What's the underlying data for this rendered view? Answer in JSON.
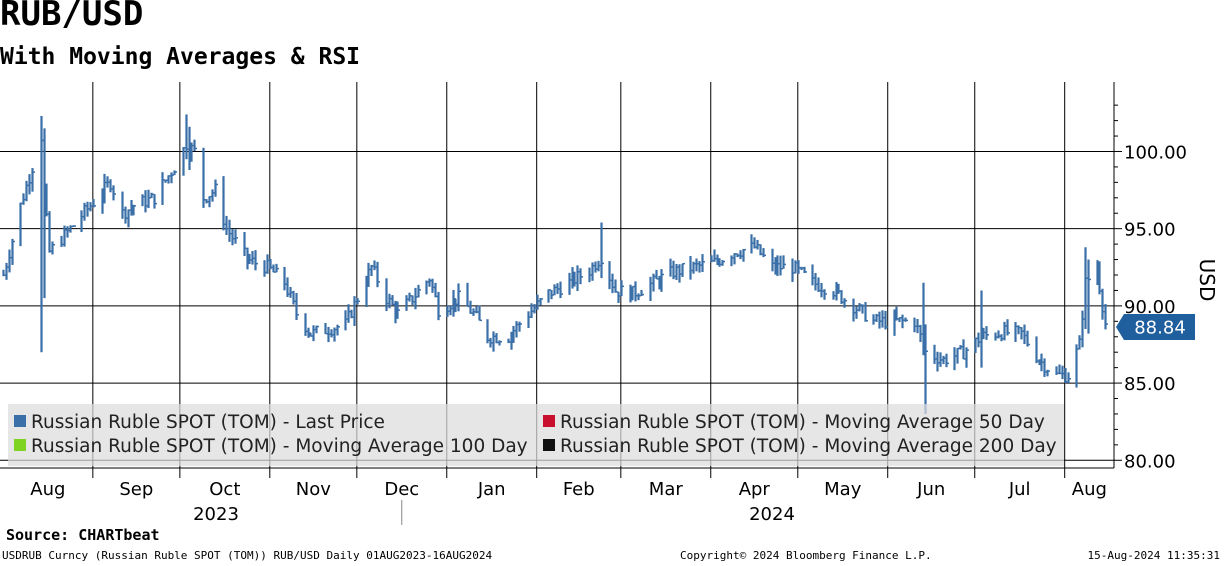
{
  "header": {
    "title": "RUB/USD",
    "subtitle": "With Moving Averages & RSI"
  },
  "footer": {
    "source": "Source: CHARTbeat",
    "security": "USDRUB Curncy (Russian Ruble SPOT (TOM)) RUB/USD  Daily 01AUG2023-16AUG2024",
    "copyright": "Copyright© 2024 Bloomberg Finance L.P.",
    "timestamp": "15-Aug-2024 11:35:31"
  },
  "legend": {
    "items": [
      {
        "label": "Russian Ruble SPOT (TOM) - Last Price",
        "color": "#3a6fa8"
      },
      {
        "label": "Russian Ruble SPOT (TOM) - Moving Average 50 Day",
        "color": "#c8102e"
      },
      {
        "label": "Russian Ruble SPOT (TOM) - Moving Average 100 Day",
        "color": "#7ed321"
      },
      {
        "label": "Russian Ruble SPOT (TOM) - Moving Average 200 Day",
        "color": "#111111"
      }
    ]
  },
  "last_price": {
    "label": "88.84",
    "color": "#1f5f9e"
  },
  "chart_data": {
    "type": "bar",
    "style": "ohlc",
    "title": "RUB/USD",
    "subtitle": "With Moving Averages & RSI",
    "ylabel": "USD",
    "ylim": [
      79.5,
      104.5
    ],
    "yticks": [
      80,
      85,
      90,
      95,
      100
    ],
    "ytick_labels": [
      "80.00",
      "85.00",
      "90.00",
      "95.00",
      "100.00"
    ],
    "grid": true,
    "months": [
      "Aug",
      "Sep",
      "Oct",
      "Nov",
      "Dec",
      "Jan",
      "Feb",
      "Mar",
      "Apr",
      "May",
      "Jun",
      "Jul",
      "Aug"
    ],
    "years": [
      "2023",
      "2024"
    ],
    "last_value": 88.84,
    "series": [
      {
        "name": "Russian Ruble SPOT (TOM) - Last Price",
        "color": "#3a6fa8",
        "anchors": [
          [
            "2023-08-01",
            92.0
          ],
          [
            "2023-08-07",
            96.5
          ],
          [
            "2023-08-11",
            99.0
          ],
          [
            "2023-08-14",
            101.0
          ],
          [
            "2023-08-15",
            97.5
          ],
          [
            "2023-08-17",
            93.5
          ],
          [
            "2023-08-24",
            95.0
          ],
          [
            "2023-08-31",
            96.5
          ],
          [
            "2023-09-07",
            98.0
          ],
          [
            "2023-09-11",
            96.0
          ],
          [
            "2023-09-15",
            96.5
          ],
          [
            "2023-09-22",
            97.0
          ],
          [
            "2023-09-29",
            99.0
          ],
          [
            "2023-10-03",
            100.5
          ],
          [
            "2023-10-06",
            100.0
          ],
          [
            "2023-10-09",
            97.0
          ],
          [
            "2023-10-13",
            97.5
          ],
          [
            "2023-10-17",
            95.0
          ],
          [
            "2023-10-24",
            93.0
          ],
          [
            "2023-10-31",
            92.5
          ],
          [
            "2023-11-06",
            91.5
          ],
          [
            "2023-11-10",
            89.5
          ],
          [
            "2023-11-15",
            88.2
          ],
          [
            "2023-11-21",
            88.5
          ],
          [
            "2023-11-27",
            88.8
          ],
          [
            "2023-12-01",
            90.5
          ],
          [
            "2023-12-06",
            92.5
          ],
          [
            "2023-12-11",
            90.5
          ],
          [
            "2023-12-15",
            89.5
          ],
          [
            "2023-12-20",
            90.5
          ],
          [
            "2023-12-26",
            91.8
          ],
          [
            "2023-12-29",
            89.8
          ],
          [
            "2024-01-05",
            90.5
          ],
          [
            "2024-01-10",
            89.5
          ],
          [
            "2024-01-15",
            88.0
          ],
          [
            "2024-01-22",
            88.0
          ],
          [
            "2024-01-29",
            89.5
          ],
          [
            "2024-02-05",
            90.8
          ],
          [
            "2024-02-12",
            91.5
          ],
          [
            "2024-02-19",
            92.3
          ],
          [
            "2024-02-23",
            93.2
          ],
          [
            "2024-02-28",
            91.0
          ],
          [
            "2024-03-05",
            90.8
          ],
          [
            "2024-03-12",
            91.5
          ],
          [
            "2024-03-19",
            92.2
          ],
          [
            "2024-03-26",
            92.5
          ],
          [
            "2024-04-02",
            92.8
          ],
          [
            "2024-04-09",
            93.5
          ],
          [
            "2024-04-16",
            93.8
          ],
          [
            "2024-04-22",
            92.5
          ],
          [
            "2024-04-29",
            92.5
          ],
          [
            "2024-05-06",
            91.5
          ],
          [
            "2024-05-13",
            91.0
          ],
          [
            "2024-05-20",
            90.0
          ],
          [
            "2024-05-27",
            89.0
          ],
          [
            "2024-06-03",
            89.0
          ],
          [
            "2024-06-10",
            89.0
          ],
          [
            "2024-06-14",
            87.0
          ],
          [
            "2024-06-20",
            86.5
          ],
          [
            "2024-06-27",
            87.0
          ],
          [
            "2024-07-03",
            88.0
          ],
          [
            "2024-07-10",
            88.3
          ],
          [
            "2024-07-17",
            88.2
          ],
          [
            "2024-07-23",
            86.5
          ],
          [
            "2024-07-29",
            85.5
          ],
          [
            "2024-08-02",
            85.5
          ],
          [
            "2024-08-06",
            87.5
          ],
          [
            "2024-08-08",
            91.5
          ],
          [
            "2024-08-12",
            92.5
          ],
          [
            "2024-08-15",
            88.84
          ]
        ]
      }
    ]
  }
}
